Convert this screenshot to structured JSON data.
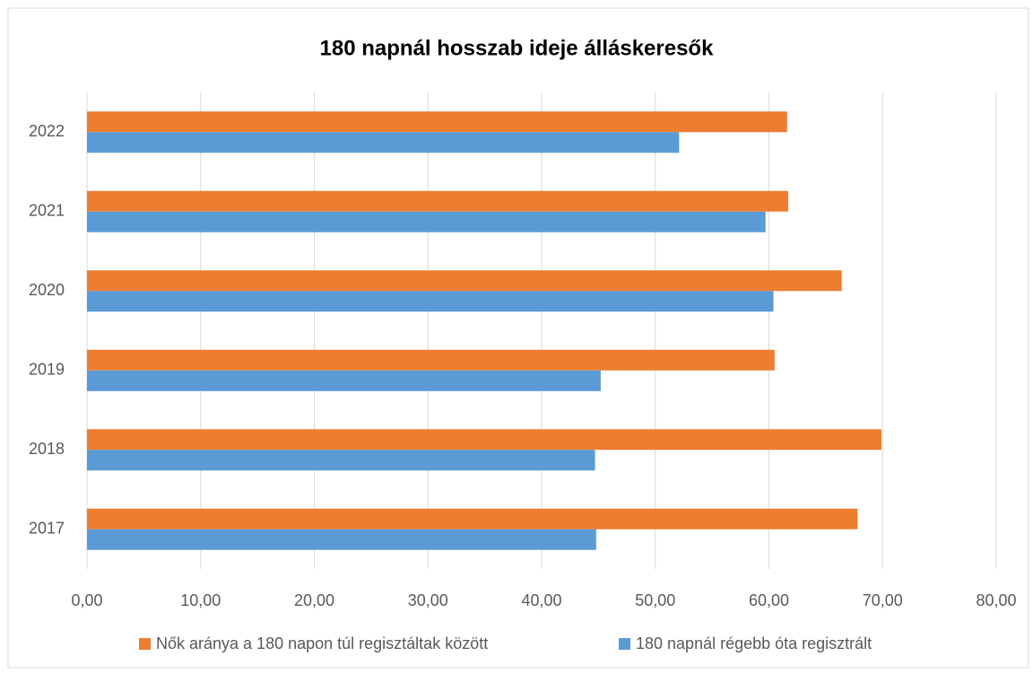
{
  "chart_data": {
    "type": "bar",
    "orientation": "horizontal",
    "title": "180 napnál hosszab ideje álláskeresők",
    "categories": [
      "2017",
      "2018",
      "2019",
      "2020",
      "2021",
      "2022"
    ],
    "series": [
      {
        "name": "Nők aránya a 180 napon túl regisztáltak között",
        "color": "#ed7d31",
        "values": [
          67.8,
          69.9,
          60.5,
          66.4,
          61.7,
          61.6
        ]
      },
      {
        "name": "180 napnál régebb óta regisztrált",
        "color": "#5b9bd5",
        "values": [
          44.8,
          44.7,
          45.2,
          60.4,
          59.7,
          52.1
        ]
      }
    ],
    "xlim": [
      0,
      80
    ],
    "xticks": [
      {
        "value": 0,
        "label": "0,00"
      },
      {
        "value": 10,
        "label": "10,00"
      },
      {
        "value": 20,
        "label": "20,00"
      },
      {
        "value": 30,
        "label": "30,00"
      },
      {
        "value": 40,
        "label": "40,00"
      },
      {
        "value": 50,
        "label": "50,00"
      },
      {
        "value": 60,
        "label": "60,00"
      },
      {
        "value": 70,
        "label": "70,00"
      },
      {
        "value": 80,
        "label": "80,00"
      }
    ],
    "grid": true,
    "legend": "bottom"
  }
}
